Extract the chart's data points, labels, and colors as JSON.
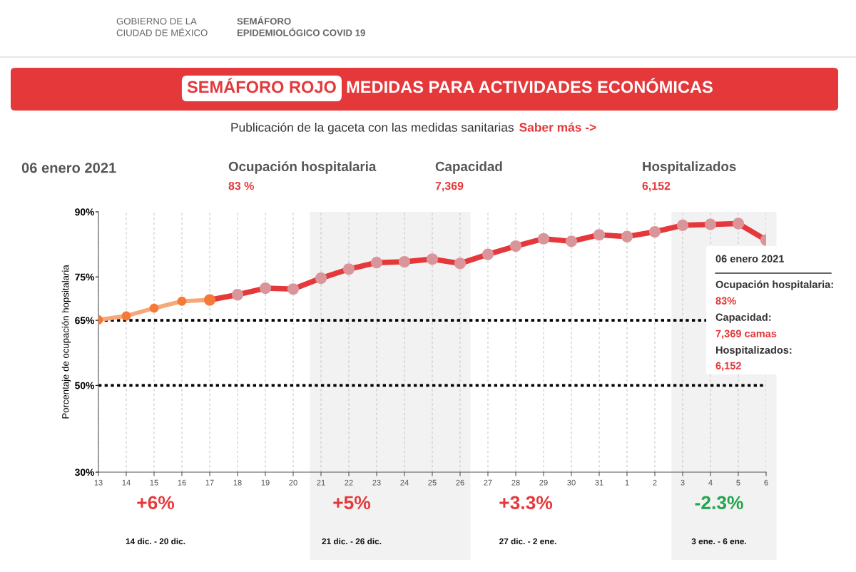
{
  "chart_data": {
    "type": "line",
    "title": "SEMÁFORO ROJO",
    "subtitle": "Publicación de la gaceta con las medidas sanitarias",
    "ylabel": "Porcentaje de ocupación hopsitalaria",
    "categories": [
      "13",
      "14",
      "15",
      "16",
      "17",
      "18",
      "19",
      "20",
      "21",
      "22",
      "23",
      "24",
      "25",
      "26",
      "27",
      "28",
      "29",
      "30",
      "31",
      "1",
      "2",
      "3",
      "4",
      "5",
      "6"
    ],
    "series": [
      {
        "color": "#f7a878",
        "values": [
          65.1,
          66.0,
          67.8,
          69.4,
          69.7,
          null,
          null,
          null,
          null,
          null,
          null,
          null,
          null,
          null,
          null,
          null,
          null,
          null,
          null,
          null,
          null,
          null,
          null,
          null,
          null
        ],
        "colors": [
          "#f47a3a",
          "#f47a3a",
          "#f47a3a",
          "#f47a3a",
          "#f47a3a",
          null,
          null,
          null,
          null,
          null,
          null,
          null,
          null,
          null,
          null,
          null,
          null,
          null,
          null,
          null,
          null,
          null,
          null,
          null,
          null
        ]
      },
      {
        "color": "#e5383b",
        "values": [
          null,
          null,
          null,
          null,
          69.7,
          70.9,
          72.4,
          72.2,
          74.7,
          76.8,
          78.3,
          78.5,
          79.1,
          78.1,
          80.2,
          82.1,
          83.8,
          83.2,
          84.7,
          84.3,
          85.4,
          86.9,
          87.1,
          87.3,
          83.5
        ],
        "colors": [
          null,
          null,
          null,
          null,
          "#f47a3a",
          "#d9959a",
          "#d9959a",
          "#d9959a",
          "#d9959a",
          "#d9959a",
          "#d9959a",
          "#d9959a",
          "#d9959a",
          "#d9959a",
          "#d9959a",
          "#d9959a",
          "#d9959a",
          "#d9959a",
          "#d9959a",
          "#d9959a",
          "#d9959a",
          "#d9959a",
          "#d9959a",
          "#d9959a",
          "#d9959a"
        ]
      }
    ],
    "ylim": [
      30,
      90
    ],
    "yticks": [
      {
        "value": 30,
        "label": "30%"
      },
      {
        "value": 50,
        "label": "50%"
      },
      {
        "value": 65,
        "label": "65%"
      },
      {
        "value": 75,
        "label": "75%"
      },
      {
        "value": 90,
        "label": "90%"
      }
    ],
    "grid": "x",
    "marker": "circle",
    "ref_lines": [
      {
        "axis": "y",
        "value": 65,
        "color": "#000000",
        "line_style": "dotted"
      },
      {
        "axis": "y",
        "value": 50,
        "color": "#000000",
        "line_style": "dotted"
      }
    ],
    "bands": [
      {
        "axis": "x",
        "from": "21",
        "to": "26",
        "color": "#f2f2f2"
      },
      {
        "axis": "x",
        "from": "3",
        "to": "6",
        "color": "#f2f2f2"
      }
    ],
    "annotations": [
      "GOBIERNO DE LA\nCIUDAD DE MÉXICO",
      "SEMÁFORO\nEPIDEMIOLÓGICO COVID 19",
      "MEDIDAS PARA ACTIVIDADES ECONÓMICAS",
      "Saber más ->",
      "06 enero 2021",
      "Ocupación hospitalaria",
      "83 %",
      "Capacidad",
      "7,369",
      "Hospitalizados",
      "6,152",
      "+6%",
      "14 dic. - 20 dic.",
      "+5%",
      "21 dic. - 26 dic.",
      "+3.3%",
      "27 dic. - 2 ene.",
      "-2.3%",
      "3 ene. - 6 ene.",
      "06 enero 2021",
      "Ocupación hospitalaria:",
      "83%",
      "Capacidad:",
      "7,369 camas",
      "Hospitalizados:",
      "6,152"
    ]
  }
}
